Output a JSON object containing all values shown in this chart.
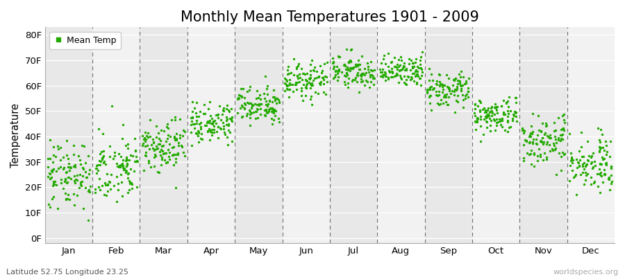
{
  "title": "Monthly Mean Temperatures 1901 - 2009",
  "ylabel": "Temperature",
  "xlabel_labels": [
    "Jan",
    "Feb",
    "Mar",
    "Apr",
    "May",
    "Jun",
    "Jul",
    "Aug",
    "Sep",
    "Oct",
    "Nov",
    "Dec"
  ],
  "ytick_labels": [
    "0F",
    "10F",
    "20F",
    "30F",
    "40F",
    "50F",
    "60F",
    "70F",
    "80F"
  ],
  "ytick_values": [
    0,
    10,
    20,
    30,
    40,
    50,
    60,
    70,
    80
  ],
  "ylim": [
    -2,
    83
  ],
  "dot_color": "#22aa00",
  "bg_even_color": "#e8e8e8",
  "bg_odd_color": "#f2f2f2",
  "legend_label": "Mean Temp",
  "footer_left": "Latitude 52.75 Longitude 23.25",
  "footer_right": "worldspecies.org",
  "title_fontsize": 15,
  "years": 109,
  "start_year": 1901,
  "monthly_means_F": [
    25.5,
    27.0,
    36.0,
    45.0,
    53.0,
    62.0,
    66.0,
    65.5,
    58.0,
    48.0,
    38.0,
    29.0
  ],
  "monthly_stds_F": [
    7.0,
    6.5,
    5.0,
    4.0,
    3.5,
    3.5,
    3.2,
    3.2,
    3.5,
    3.5,
    4.5,
    5.5
  ],
  "seed": 42
}
